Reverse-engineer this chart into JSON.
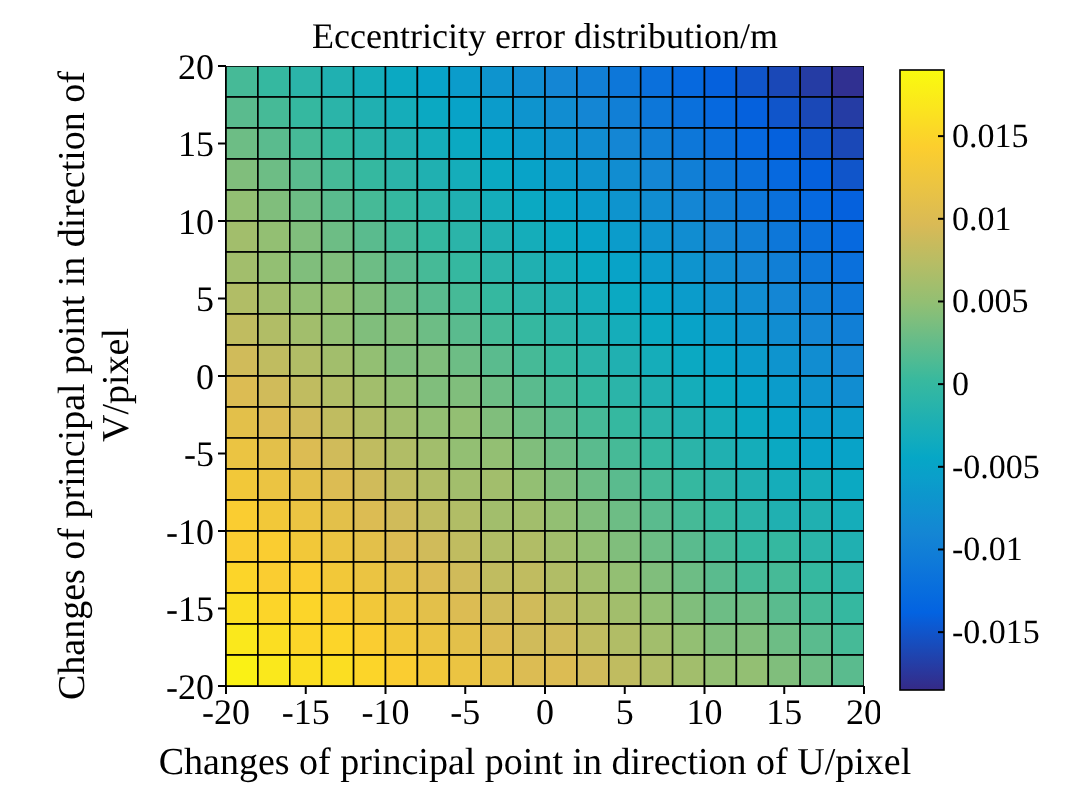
{
  "chart_data": {
    "type": "heatmap",
    "title": "Eccentricity error distribution/m",
    "xlabel": "Changes of principal point in direction of U/pixel",
    "ylabel": "Changes of principal point in direction of V/pixel",
    "x": [
      -19,
      -17,
      -15,
      -13,
      -11,
      -9,
      -7,
      -5,
      -3,
      -1,
      1,
      3,
      5,
      7,
      9,
      11,
      13,
      15,
      17,
      19
    ],
    "y": [
      19,
      17,
      15,
      13,
      11,
      9,
      7,
      5,
      3,
      1,
      -1,
      -3,
      -5,
      -7,
      -9,
      -11,
      -13,
      -15,
      -17,
      -19
    ],
    "xlim": [
      -20,
      20
    ],
    "xticks": [
      -20,
      -15,
      -10,
      -5,
      0,
      5,
      10,
      15,
      20
    ],
    "ylim": [
      -20,
      20
    ],
    "yticks": [
      -20,
      -15,
      -10,
      -5,
      0,
      5,
      10,
      15,
      20
    ],
    "clim": [
      -0.0185,
      0.019
    ],
    "cticks": [
      -0.015,
      -0.01,
      -0.005,
      0,
      0.005,
      0.01,
      0.015
    ],
    "cells": [
      [
        0.001,
        0,
        -0.001,
        -0.002,
        -0.003,
        -0.004,
        -0.005,
        -0.006,
        -0.007,
        -0.008,
        -0.009,
        -0.01,
        -0.011,
        -0.012,
        -0.013,
        -0.014,
        -0.015,
        -0.016,
        -0.017,
        -0.018
      ],
      [
        0.002,
        0.001,
        0,
        -0.001,
        -0.002,
        -0.003,
        -0.004,
        -0.005,
        -0.006,
        -0.007,
        -0.008,
        -0.009,
        -0.01,
        -0.011,
        -0.012,
        -0.013,
        -0.014,
        -0.015,
        -0.016,
        -0.017
      ],
      [
        0.003,
        0.002,
        0.001,
        0,
        -0.001,
        -0.002,
        -0.003,
        -0.004,
        -0.005,
        -0.006,
        -0.007,
        -0.008,
        -0.009,
        -0.01,
        -0.011,
        -0.012,
        -0.013,
        -0.014,
        -0.015,
        -0.016
      ],
      [
        0.004,
        0.003,
        0.002,
        0.001,
        0,
        -0.001,
        -0.002,
        -0.003,
        -0.004,
        -0.005,
        -0.006,
        -0.007,
        -0.008,
        -0.009,
        -0.01,
        -0.011,
        -0.012,
        -0.013,
        -0.014,
        -0.015
      ],
      [
        0.005,
        0.004,
        0.003,
        0.002,
        0.001,
        0,
        -0.001,
        -0.002,
        -0.003,
        -0.004,
        -0.005,
        -0.006,
        -0.007,
        -0.008,
        -0.009,
        -0.01,
        -0.011,
        -0.012,
        -0.013,
        -0.014
      ],
      [
        0.006,
        0.005,
        0.004,
        0.003,
        0.002,
        0.001,
        0,
        -0.001,
        -0.002,
        -0.003,
        -0.004,
        -0.005,
        -0.006,
        -0.007,
        -0.008,
        -0.009,
        -0.01,
        -0.011,
        -0.012,
        -0.013
      ],
      [
        0.006,
        0.005,
        0.004,
        0.004,
        0.003,
        0.002,
        0.001,
        0,
        -0.001,
        -0.002,
        -0.003,
        -0.004,
        -0.005,
        -0.006,
        -0.007,
        -0.008,
        -0.009,
        -0.01,
        -0.011,
        -0.012
      ],
      [
        0.007,
        0.006,
        0.005,
        0.005,
        0.004,
        0.003,
        0.002,
        0.001,
        0,
        -0.001,
        -0.002,
        -0.003,
        -0.004,
        -0.005,
        -0.006,
        -0.007,
        -0.008,
        -0.009,
        -0.01,
        -0.011
      ],
      [
        0.008,
        0.007,
        0.006,
        0.005,
        0.004,
        0.004,
        0.003,
        0.002,
        0.001,
        0,
        -0.001,
        -0.002,
        -0.003,
        -0.004,
        -0.005,
        -0.006,
        -0.007,
        -0.008,
        -0.009,
        -0.01
      ],
      [
        0.009,
        0.008,
        0.007,
        0.006,
        0.005,
        0.004,
        0.004,
        0.003,
        0.002,
        0.001,
        0,
        -0.001,
        -0.002,
        -0.003,
        -0.004,
        -0.005,
        -0.006,
        -0.007,
        -0.008,
        -0.009
      ],
      [
        0.01,
        0.009,
        0.008,
        0.007,
        0.006,
        0.005,
        0.004,
        0.004,
        0.003,
        0.002,
        0.001,
        0,
        -0.001,
        -0.002,
        -0.003,
        -0.004,
        -0.005,
        -0.006,
        -0.007,
        -0.008
      ],
      [
        0.011,
        0.01,
        0.009,
        0.008,
        0.007,
        0.006,
        0.005,
        0.005,
        0.004,
        0.003,
        0.002,
        0.001,
        0,
        -0.001,
        -0.002,
        -0.003,
        -0.004,
        -0.005,
        -0.006,
        -0.006
      ],
      [
        0.012,
        0.011,
        0.01,
        0.009,
        0.008,
        0.007,
        0.006,
        0.005,
        0.005,
        0.004,
        0.003,
        0.002,
        0.001,
        0,
        -0.001,
        -0.002,
        -0.003,
        -0.004,
        -0.005,
        -0.005
      ],
      [
        0.013,
        0.012,
        0.011,
        0.01,
        0.009,
        0.008,
        0.007,
        0.006,
        0.006,
        0.005,
        0.004,
        0.003,
        0.002,
        0.001,
        0,
        -0.001,
        -0.002,
        -0.003,
        -0.003,
        -0.004
      ],
      [
        0.014,
        0.013,
        0.012,
        0.011,
        0.01,
        0.009,
        0.008,
        0.007,
        0.006,
        0.006,
        0.005,
        0.004,
        0.003,
        0.002,
        0.001,
        0,
        -0.001,
        -0.002,
        -0.002,
        -0.003
      ],
      [
        0.014,
        0.014,
        0.013,
        0.012,
        0.011,
        0.01,
        0.009,
        0.008,
        0.007,
        0.007,
        0.006,
        0.005,
        0.004,
        0.003,
        0.002,
        0.001,
        0,
        0,
        -0.001,
        -0.002
      ],
      [
        0.015,
        0.014,
        0.014,
        0.013,
        0.012,
        0.011,
        0.01,
        0.009,
        0.008,
        0.008,
        0.007,
        0.006,
        0.005,
        0.004,
        0.003,
        0.002,
        0.001,
        0.001,
        0,
        -0.001
      ],
      [
        0.016,
        0.015,
        0.015,
        0.014,
        0.013,
        0.012,
        0.011,
        0.01,
        0.009,
        0.009,
        0.008,
        0.007,
        0.006,
        0.005,
        0.004,
        0.003,
        0.003,
        0.002,
        0.001,
        0
      ],
      [
        0.017,
        0.016,
        0.015,
        0.015,
        0.014,
        0.013,
        0.012,
        0.011,
        0.01,
        0.009,
        0.009,
        0.008,
        0.007,
        0.006,
        0.005,
        0.004,
        0.004,
        0.003,
        0.002,
        0.001
      ],
      [
        0.018,
        0.017,
        0.016,
        0.016,
        0.015,
        0.014,
        0.013,
        0.012,
        0.011,
        0.01,
        0.01,
        0.009,
        0.008,
        0.007,
        0.006,
        0.005,
        0.005,
        0.004,
        0.003,
        0.002
      ]
    ]
  }
}
